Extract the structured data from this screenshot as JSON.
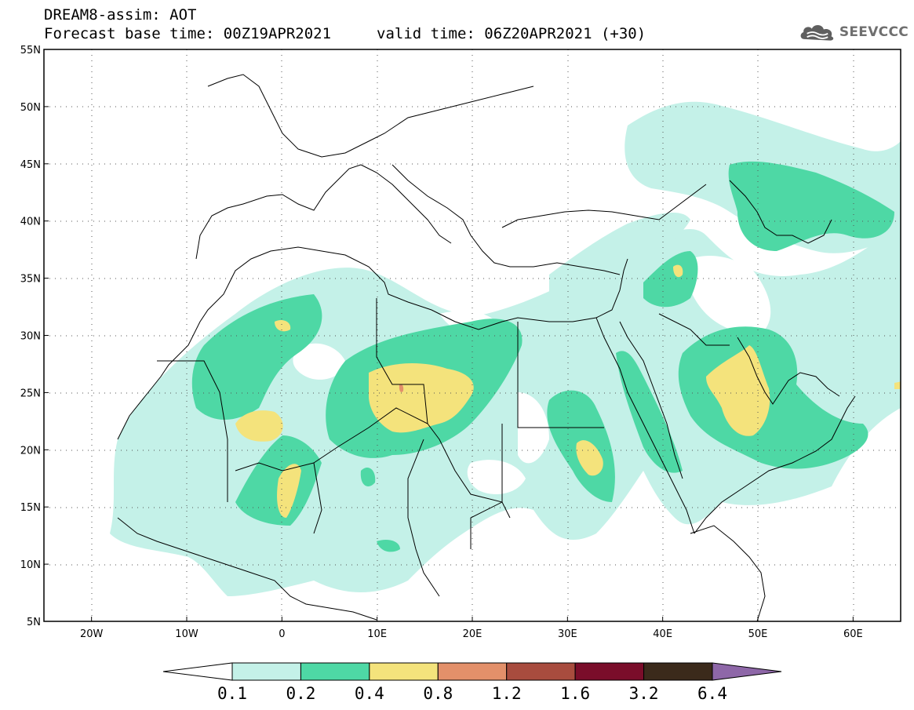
{
  "header": {
    "line1": "DREAM8-assim: AOT",
    "line2": "Forecast base time: 00Z19APR2021",
    "valid": "valid time: 06Z20APR2021 (+30)"
  },
  "logo": {
    "text": "SEEVCCC",
    "icon": "cloud-icon"
  },
  "map": {
    "lon_range": [
      -25,
      65
    ],
    "lat_range": [
      5,
      55
    ],
    "lat_ticks": [
      "5N",
      "10N",
      "15N",
      "20N",
      "25N",
      "30N",
      "35N",
      "40N",
      "45N",
      "50N",
      "55N"
    ],
    "lon_ticks": [
      "20W",
      "10W",
      "0",
      "10E",
      "20E",
      "30E",
      "40E",
      "50E",
      "60E"
    ],
    "gridlines": "dotted"
  },
  "colorbar": {
    "labels": [
      "0.1",
      "0.2",
      "0.4",
      "0.8",
      "1.2",
      "1.6",
      "3.2",
      "6.4"
    ],
    "colors": [
      "#ffffff",
      "#c4f1e8",
      "#4ed8a5",
      "#f4e37c",
      "#e3906a",
      "#a84c3e",
      "#7a0d2a",
      "#3b2a1b",
      "#8e67a8"
    ]
  },
  "colors": {
    "level_0_1": "#c4f1e8",
    "level_0_2": "#4ed8a5",
    "level_0_4": "#f4e37c",
    "level_0_8": "#e3906a"
  }
}
